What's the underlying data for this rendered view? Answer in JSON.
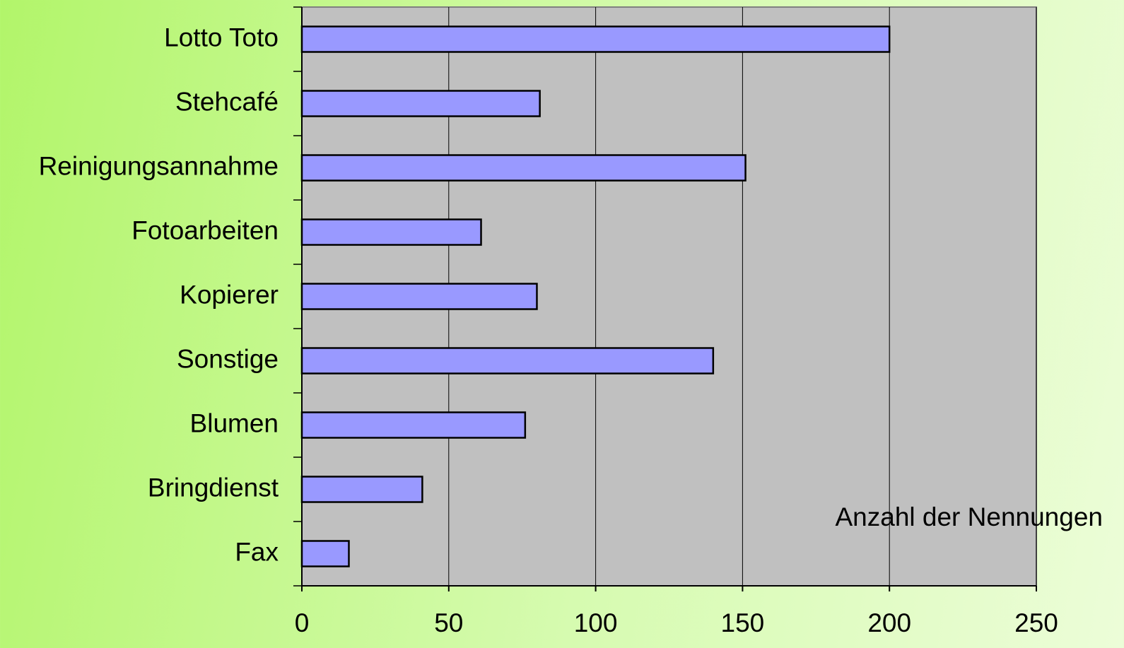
{
  "chart_data": {
    "type": "bar",
    "orientation": "horizontal",
    "categories": [
      "Lotto Toto",
      "Stehcafé",
      "Reinigungsannahme",
      "Fotoarbeiten",
      "Kopierer",
      "Sonstige",
      "Blumen",
      "Bringdienst",
      "Fax"
    ],
    "values": [
      200,
      81,
      151,
      61,
      80,
      140,
      76,
      41,
      16
    ],
    "color": "#9999ff",
    "xlabel": "Anzahl der Nennungen",
    "xlim": [
      0,
      250
    ],
    "xticks": [
      0,
      50,
      100,
      150,
      200,
      250
    ],
    "grid": true
  }
}
